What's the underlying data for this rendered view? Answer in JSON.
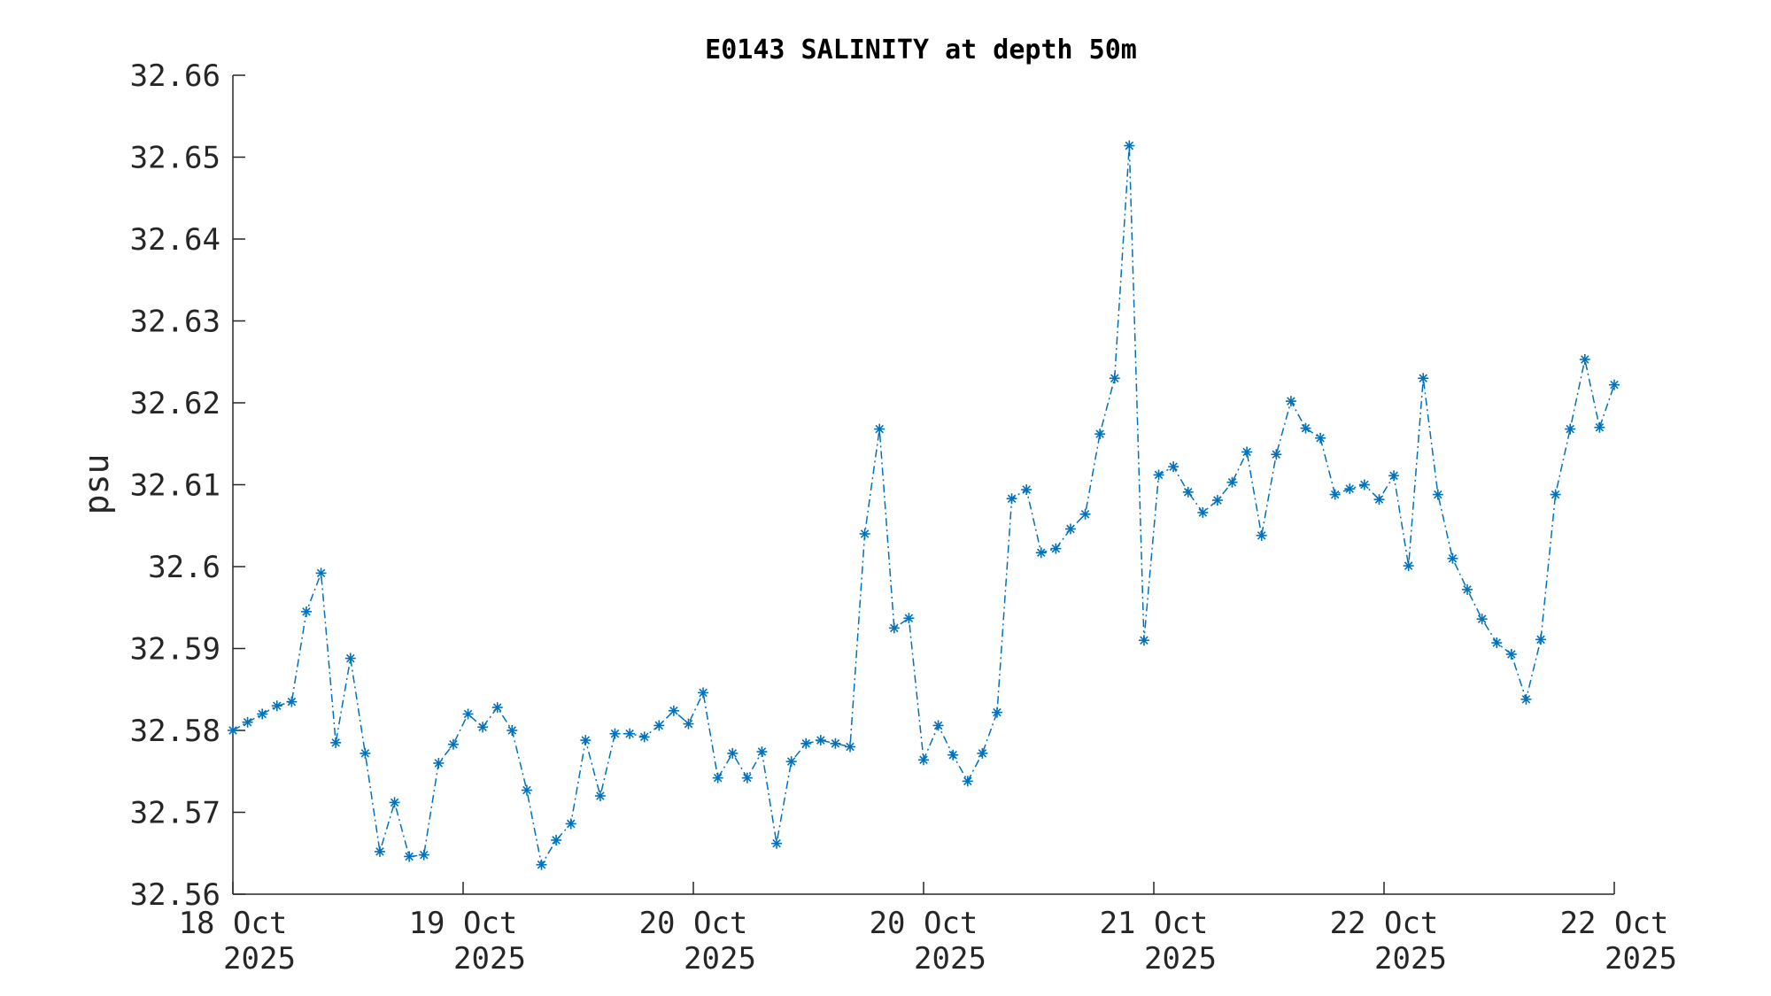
{
  "chart_data": {
    "type": "line",
    "title": "E0143 SALINITY at depth 50m",
    "xlabel": "",
    "ylabel": "psu",
    "ylim": [
      32.56,
      32.66
    ],
    "yticks": [
      "32.56",
      "32.57",
      "32.58",
      "32.59",
      "32.6",
      "32.61",
      "32.62",
      "32.63",
      "32.64",
      "32.65",
      "32.66"
    ],
    "xlim": [
      0,
      6
    ],
    "xticks": [
      {
        "line1": "18 Oct",
        "line2": "2025"
      },
      {
        "line1": "19 Oct",
        "line2": "2025"
      },
      {
        "line1": "20 Oct",
        "line2": "2025"
      },
      {
        "line1": "20 Oct",
        "line2": "2025"
      },
      {
        "line1": "21 Oct",
        "line2": "2025"
      },
      {
        "line1": "22 Oct",
        "line2": "2025"
      },
      {
        "line1": "22 Oct",
        "line2": "2025"
      }
    ],
    "grid": false,
    "legend": "none",
    "series": [
      {
        "color": "#0072BD",
        "line_style": "dash-dot",
        "marker": "asterisk",
        "values": [
          32.58,
          32.581,
          32.582,
          32.583,
          32.5835,
          32.5945,
          32.5992,
          32.5785,
          32.5888,
          32.5772,
          32.5652,
          32.5712,
          32.5646,
          32.5648,
          32.576,
          32.5783,
          32.582,
          32.5804,
          32.5828,
          32.58,
          32.5727,
          32.5636,
          32.5666,
          32.5686,
          32.5788,
          32.572,
          32.5796,
          32.5796,
          32.5792,
          32.5806,
          32.5824,
          32.5808,
          32.5846,
          32.5742,
          32.5772,
          32.5742,
          32.5774,
          32.5662,
          32.5762,
          32.5784,
          32.5788,
          32.5784,
          32.578,
          32.604,
          32.6168,
          32.5925,
          32.5937,
          32.5764,
          32.5806,
          32.577,
          32.5738,
          32.5772,
          32.5822,
          32.6083,
          32.6094,
          32.6017,
          32.6022,
          32.6046,
          32.6064,
          32.6162,
          32.623,
          32.6514,
          32.591,
          32.6112,
          32.6122,
          32.6091,
          32.6066,
          32.6081,
          32.6103,
          32.614,
          32.6038,
          32.6137,
          32.6202,
          32.6169,
          32.6157,
          32.6088,
          32.6095,
          32.61,
          32.6082,
          32.6111,
          32.6001,
          32.623,
          32.6088,
          32.601,
          32.5972,
          32.5936,
          32.5907,
          32.5893,
          32.5838,
          32.5911,
          32.6088,
          32.6168,
          32.6253,
          32.617,
          32.6222
        ]
      }
    ]
  }
}
